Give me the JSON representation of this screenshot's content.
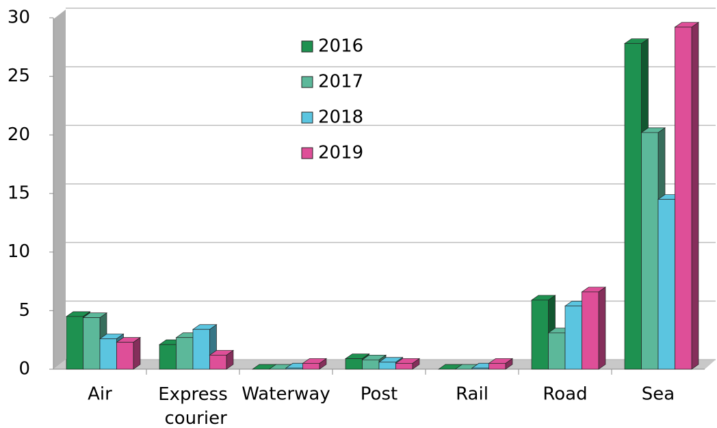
{
  "chart_data": {
    "type": "bar",
    "categories": [
      "Air",
      "Express courier",
      "Waterway",
      "Post",
      "Rail",
      "Road",
      "Sea"
    ],
    "series": [
      {
        "name": "2016",
        "color": "#1e9150",
        "values": [
          4.5,
          2.1,
          0,
          0.9,
          0,
          5.9,
          27.8
        ]
      },
      {
        "name": "2017",
        "color": "#5cb89a",
        "values": [
          4.4,
          2.7,
          0,
          0.8,
          0,
          3.1,
          20.2
        ]
      },
      {
        "name": "2018",
        "color": "#5bc5e0",
        "values": [
          2.6,
          3.4,
          0.1,
          0.6,
          0.1,
          5.4,
          14.5
        ]
      },
      {
        "name": "2019",
        "color": "#de4f98",
        "values": [
          2.3,
          1.2,
          0.5,
          0.5,
          0.5,
          6.6,
          29.2
        ]
      }
    ],
    "ylim": [
      0,
      30
    ],
    "yticks": [
      0,
      5,
      10,
      15,
      20,
      25,
      30
    ],
    "grid": true
  }
}
